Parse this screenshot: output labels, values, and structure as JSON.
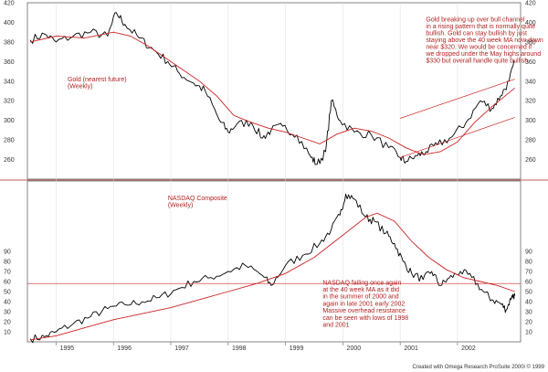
{
  "colors": {
    "price": "#000000",
    "ma": "#cc2222",
    "note": "#b22222",
    "frame": "#666666",
    "grid": "#dddddd"
  },
  "credit": "Created with Omega Research ProSuite 2000i © 1999",
  "chart_data": [
    {
      "type": "line",
      "panel": "top",
      "ylim": [
        240,
        420
      ],
      "yticks": [
        "420",
        "400",
        "380",
        "360",
        "340",
        "320",
        "300",
        "280",
        "260"
      ],
      "ytick_values": [
        420,
        400,
        380,
        360,
        340,
        320,
        300,
        280,
        260
      ],
      "annotations": [
        {
          "text": "Gold (nearest future)",
          "x": 1995.2,
          "y": 340
        },
        {
          "text": "(Weekly)",
          "x": 1995.2,
          "y": 333
        },
        {
          "text": "Gold breaking up over bull channel",
          "x": 2001.45,
          "y": 401
        },
        {
          "text": "in a rising pattern that is normally quite",
          "x": 2001.45,
          "y": 394
        },
        {
          "text": "bullish. Gold can stay bullish by just",
          "x": 2001.45,
          "y": 387
        },
        {
          "text": "staying above the 40 week MA now down",
          "x": 2001.45,
          "y": 380
        },
        {
          "text": "near $320. We would be concerned if",
          "x": 2001.45,
          "y": 373
        },
        {
          "text": "we dropped under the May highs around",
          "x": 2001.45,
          "y": 366
        },
        {
          "text": "$330 but overall handle quite bullish",
          "x": 2001.45,
          "y": 359
        }
      ],
      "series": [
        {
          "role": "price",
          "x": [
            1994.55,
            1994.8,
            1995.0,
            1995.3,
            1995.6,
            1995.9,
            1996.05,
            1996.2,
            1996.45,
            1996.7,
            1996.95,
            1997.15,
            1997.4,
            1997.6,
            1997.85,
            1998.0,
            1998.15,
            1998.4,
            1998.6,
            1998.75,
            1998.95,
            1999.2,
            1999.45,
            1999.55,
            1999.7,
            1999.8,
            1999.95,
            2000.2,
            2000.5,
            2000.8,
            2001.0,
            2001.1,
            2001.3,
            2001.45,
            2001.65,
            2001.9,
            2002.15,
            2002.4,
            2002.6,
            2002.75,
            2002.9,
            2003.0
          ],
          "values": [
            382,
            388,
            380,
            386,
            390,
            386,
            410,
            398,
            384,
            372,
            360,
            348,
            338,
            330,
            300,
            288,
            296,
            298,
            282,
            290,
            294,
            285,
            262,
            255,
            268,
            320,
            300,
            288,
            285,
            272,
            262,
            258,
            264,
            268,
            275,
            283,
            298,
            320,
            312,
            325,
            340,
            360
          ]
        },
        {
          "role": "moving-average",
          "x": [
            1994.55,
            1995.0,
            1995.5,
            1996.0,
            1996.3,
            1996.6,
            1996.9,
            1997.2,
            1997.5,
            1997.8,
            1998.1,
            1998.4,
            1998.7,
            1999.0,
            1999.3,
            1999.6,
            1999.9,
            2000.2,
            2000.5,
            2000.8,
            2001.1,
            2001.4,
            2001.7,
            2002.0,
            2002.3,
            2002.6,
            2003.0
          ],
          "values": [
            380,
            386,
            384,
            390,
            386,
            376,
            364,
            352,
            340,
            325,
            305,
            298,
            292,
            288,
            282,
            276,
            286,
            292,
            289,
            282,
            272,
            265,
            268,
            278,
            298,
            314,
            333
          ]
        },
        {
          "role": "channel-upper",
          "x": [
            2001.0,
            2003.0
          ],
          "values": [
            302,
            342
          ]
        },
        {
          "role": "channel-lower",
          "x": [
            2001.0,
            2003.0
          ],
          "values": [
            262,
            303
          ]
        }
      ]
    },
    {
      "type": "line",
      "panel": "bottom",
      "ylim": [
        0,
        160
      ],
      "yticks": [
        "90",
        "80",
        "70",
        "60",
        "50",
        "40",
        "30",
        "20",
        "10"
      ],
      "ytick_values": [
        90,
        80,
        70,
        60,
        50,
        40,
        30,
        20,
        10
      ],
      "xticks": [
        "1995",
        "1996",
        "1997",
        "1998",
        "1999",
        "2000",
        "2001",
        "2002"
      ],
      "xtick_values": [
        1995,
        1996,
        1997,
        1998,
        1999,
        2000,
        2001,
        2002
      ],
      "xlim": [
        1994.5,
        2003.1
      ],
      "annotations": [
        {
          "text": "NASDAQ Composite",
          "x": 1996.95,
          "y": 141
        },
        {
          "text": "(Weekly)",
          "x": 1996.95,
          "y": 134
        },
        {
          "text": "NASDAQ failing once again",
          "x": 1999.65,
          "y": 57
        },
        {
          "text": "at the 40 week MA as it did",
          "x": 1999.65,
          "y": 50
        },
        {
          "text": "in the summer of 2000 and",
          "x": 1999.65,
          "y": 43
        },
        {
          "text": "again in late 2001 early 2002",
          "x": 1999.65,
          "y": 36
        },
        {
          "text": "Massive overhead resistance",
          "x": 1999.65,
          "y": 29
        },
        {
          "text": "can be seen with lows of 1998",
          "x": 1999.65,
          "y": 22
        },
        {
          "text": "and 2001",
          "x": 1999.65,
          "y": 15
        }
      ],
      "series": [
        {
          "role": "price",
          "x": [
            1994.55,
            1994.8,
            1995.0,
            1995.3,
            1995.6,
            1995.9,
            1996.2,
            1996.5,
            1996.8,
            1997.1,
            1997.4,
            1997.7,
            1998.0,
            1998.3,
            1998.6,
            1998.75,
            1999.0,
            1999.3,
            1999.6,
            1999.8,
            1999.95,
            2000.05,
            2000.2,
            2000.4,
            2000.55,
            2000.75,
            2000.9,
            2001.05,
            2001.2,
            2001.4,
            2001.55,
            2001.7,
            2001.85,
            2002.05,
            2002.25,
            2002.45,
            2002.6,
            2002.75,
            2002.85,
            2002.95,
            2003.0
          ],
          "values": [
            3,
            5,
            10,
            18,
            25,
            33,
            37,
            40,
            44,
            52,
            60,
            64,
            70,
            76,
            66,
            56,
            76,
            86,
            98,
            112,
            126,
            147,
            142,
            124,
            120,
            108,
            98,
            80,
            68,
            62,
            70,
            56,
            63,
            70,
            64,
            50,
            42,
            38,
            32,
            46,
            46
          ]
        },
        {
          "role": "moving-average",
          "x": [
            1994.55,
            1995.0,
            1995.5,
            1996.0,
            1996.5,
            1997.0,
            1997.5,
            1998.0,
            1998.5,
            1999.0,
            1999.5,
            2000.0,
            2000.4,
            2000.6,
            2000.9,
            2001.2,
            2001.5,
            2001.8,
            2002.1,
            2002.4,
            2002.7,
            2003.0
          ],
          "values": [
            2,
            6,
            14,
            22,
            28,
            34,
            42,
            50,
            58,
            68,
            84,
            106,
            124,
            128,
            120,
            100,
            84,
            72,
            64,
            60,
            56,
            50
          ]
        },
        {
          "role": "resistance",
          "x": [
            1994.5,
            2003.1
          ],
          "values": [
            58,
            58
          ]
        }
      ]
    }
  ]
}
